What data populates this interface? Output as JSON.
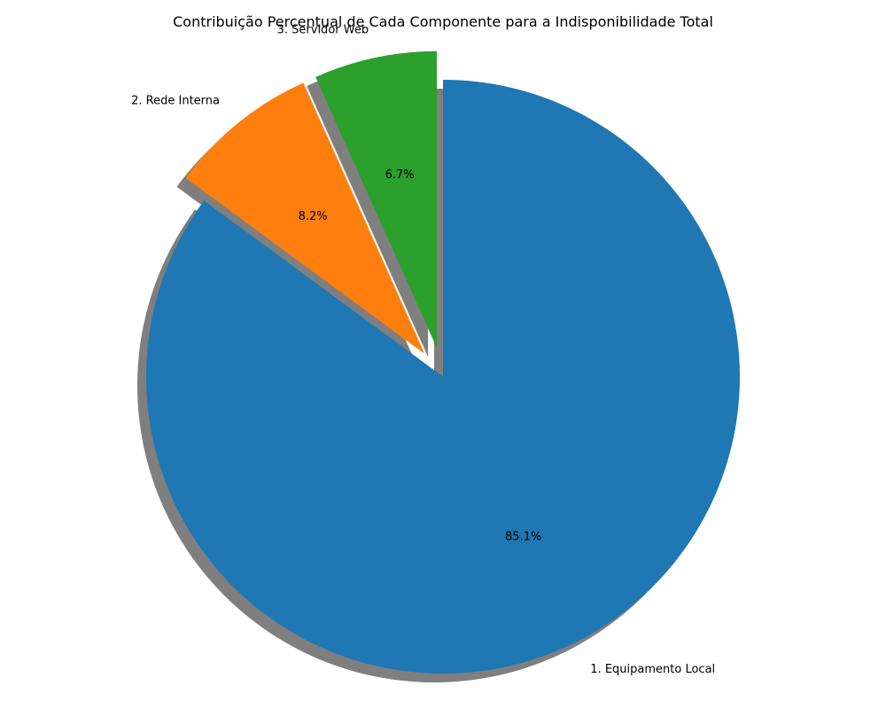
{
  "chart_data": {
    "type": "pie",
    "title": "Contribuição Percentual de Cada Componente para a Indisponibilidade Total",
    "slices": [
      {
        "label": "1. Equipamento Local",
        "value": 85.1,
        "pct_label": "85.1%",
        "color": "#1f77b4",
        "exploded": false
      },
      {
        "label": "2. Rede Interna",
        "value": 8.2,
        "pct_label": "8.2%",
        "color": "#ff7f0e",
        "exploded": true
      },
      {
        "label": "3. Servidor Web",
        "value": 6.7,
        "pct_label": "6.7%",
        "color": "#2ca02c",
        "exploded": true
      }
    ],
    "start_angle_deg": 90,
    "direction": "clockwise",
    "shadow": true,
    "legend": "none"
  }
}
